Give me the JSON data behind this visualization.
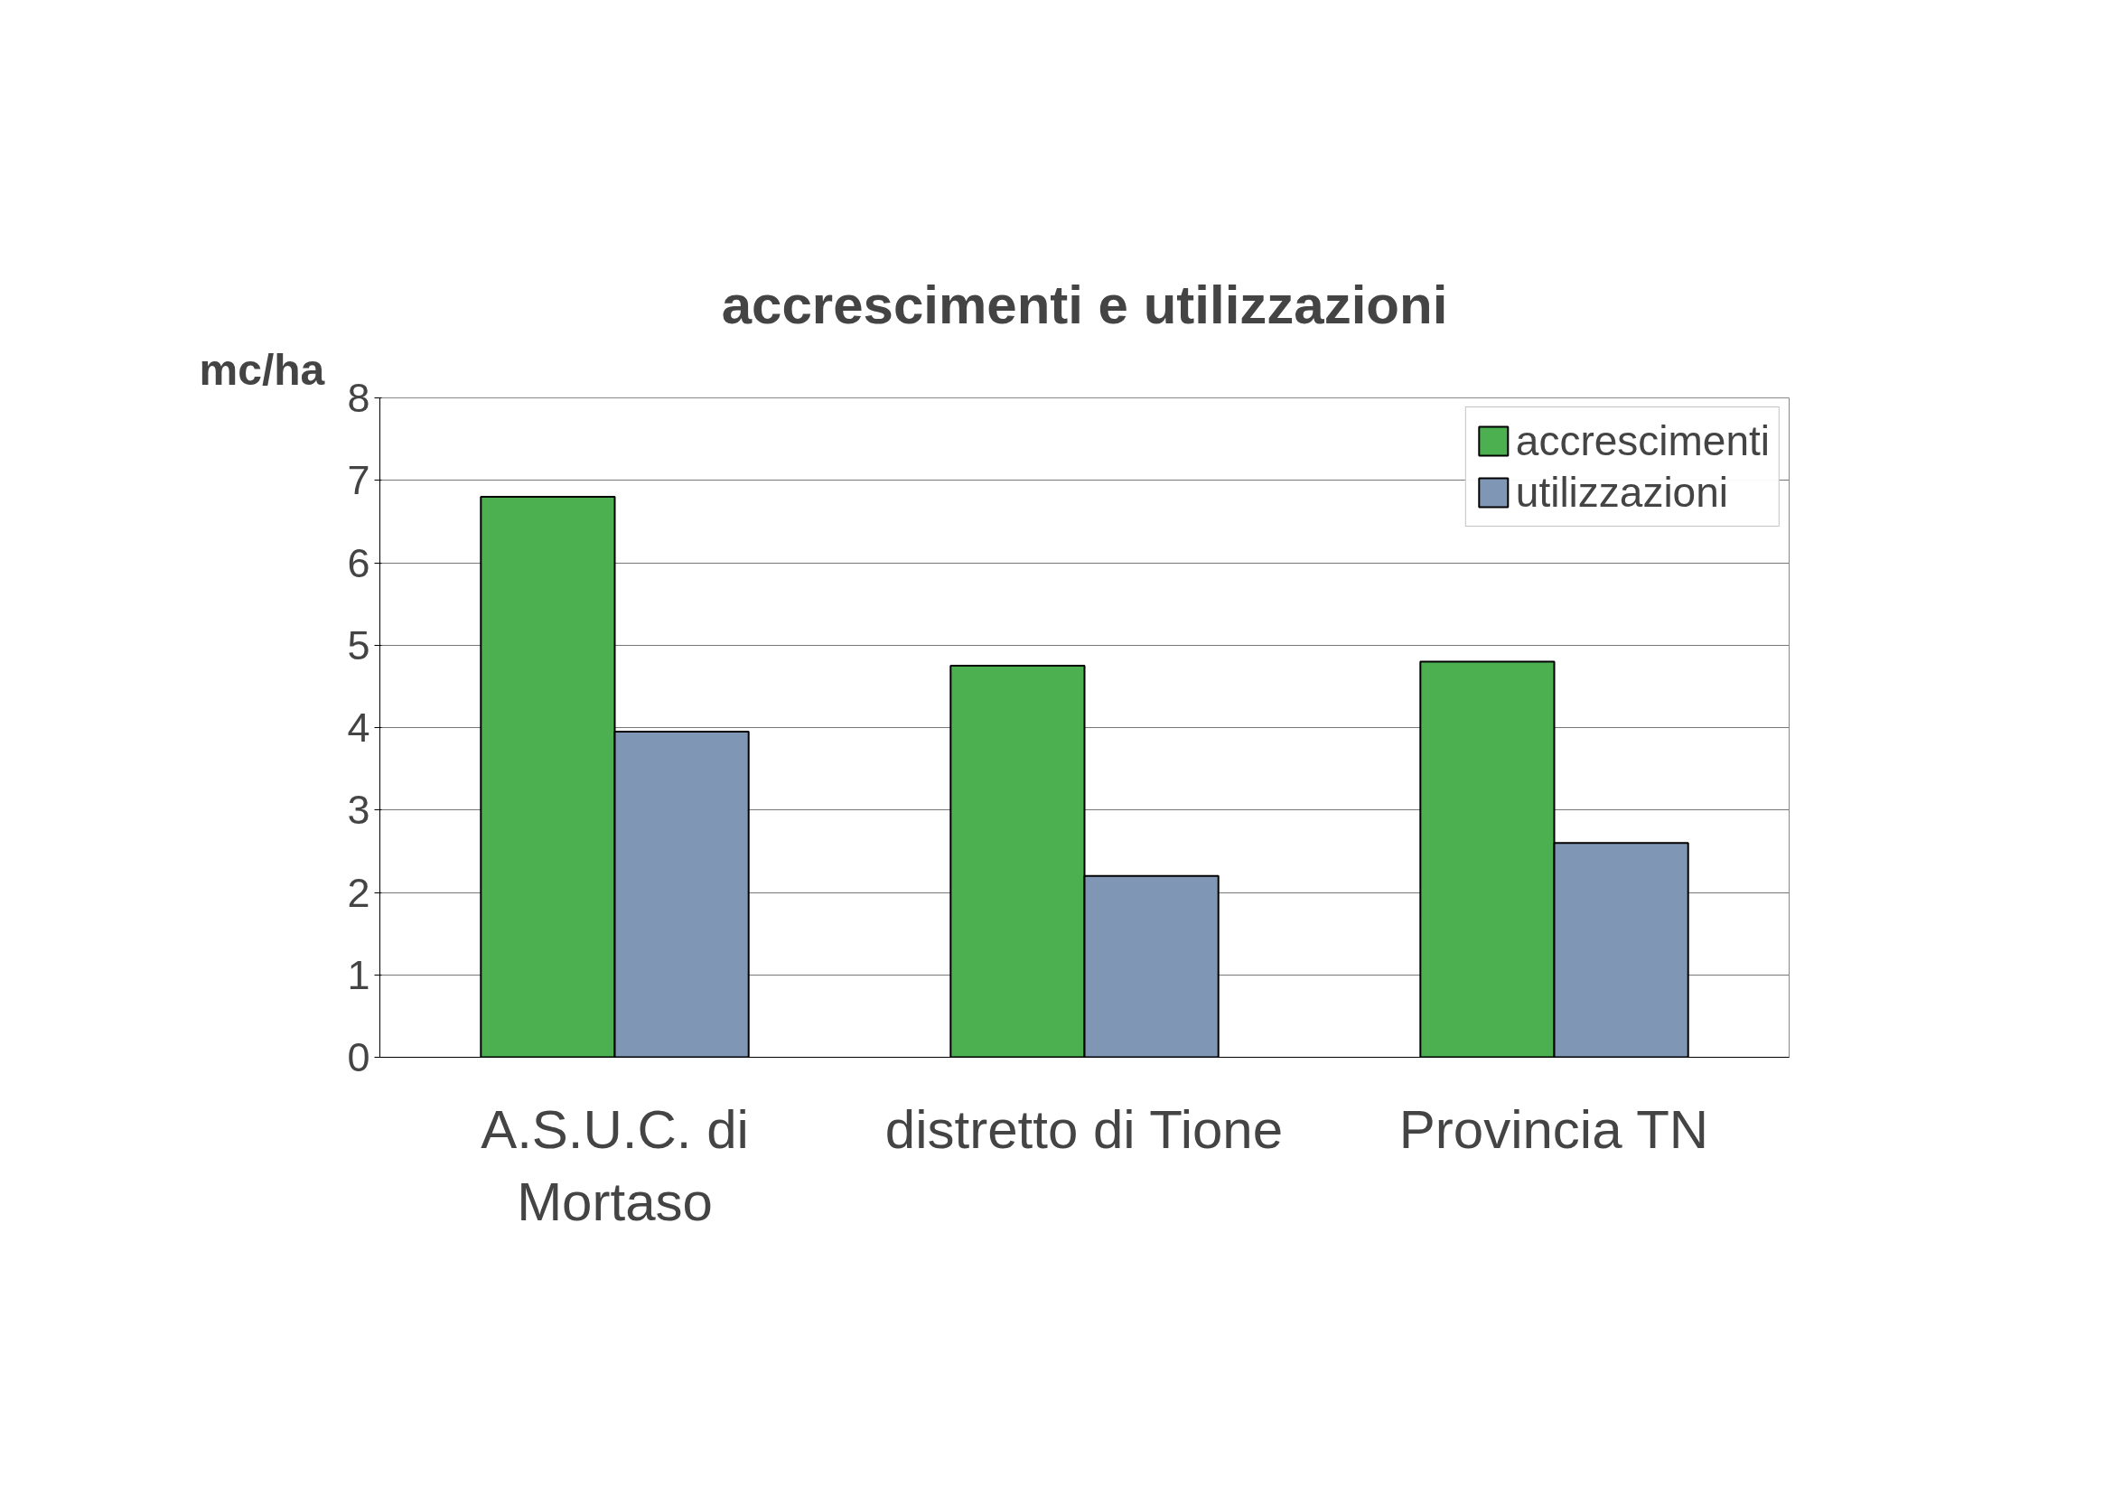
{
  "chart_data": {
    "type": "bar",
    "title": "accrescimenti e utilizzazioni",
    "ylabel": "mc/ha",
    "categories": [
      "A.S.U.C. di Mortaso",
      "distretto di Tione",
      "Provincia TN"
    ],
    "series": [
      {
        "name": "accrescimenti",
        "color": "#4caf50",
        "values": [
          6.8,
          4.75,
          4.8
        ]
      },
      {
        "name": "utilizzazioni",
        "color": "#7f96b4",
        "values": [
          3.95,
          2.2,
          2.6
        ]
      }
    ],
    "ylim": [
      0,
      8
    ],
    "yticks": [
      0,
      1,
      2,
      3,
      4,
      5,
      6,
      7,
      8
    ],
    "grid": "y",
    "legend": "top right"
  }
}
